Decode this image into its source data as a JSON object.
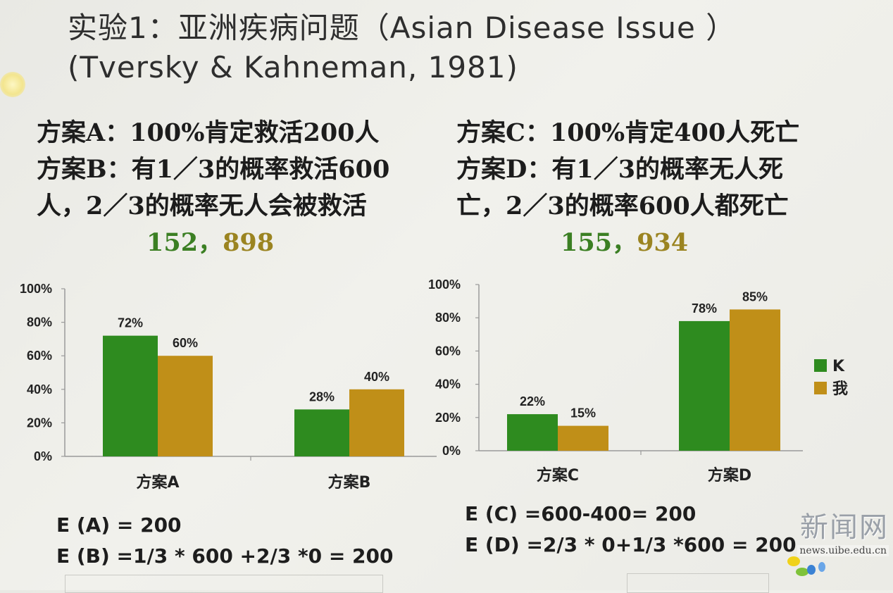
{
  "title": {
    "line1": "实验1：亚洲疾病问题（Asian Disease Issue ）",
    "line2": "(Tversky & Kahneman, 1981)"
  },
  "schemes": {
    "a": "方案A：100%肯定救活200人",
    "b1": "方案B：有1／3的概率救活600",
    "b2": "人，2／3的概率无人会被救活",
    "c": "方案C：100%肯定400人死亡",
    "d1": "方案D：有1／3的概率无人死",
    "d2": "亡，2／3的概率600人都死亡"
  },
  "counts": {
    "left_k": "152",
    "left_sep": "，",
    "left_me": "898",
    "right_k": "155",
    "right_sep": "，",
    "right_me": "934"
  },
  "colors": {
    "k": "#2e8b1f",
    "me": "#c08f18"
  },
  "chart_data": [
    {
      "type": "bar",
      "categories": [
        "方案A",
        "方案B"
      ],
      "series": [
        {
          "name": "K",
          "values": [
            72,
            28
          ],
          "labels": [
            "72%",
            "28%"
          ]
        },
        {
          "name": "我",
          "values": [
            60,
            40
          ],
          "labels": [
            "60%",
            "40%"
          ]
        }
      ],
      "yticks": [
        "0%",
        "20%",
        "40%",
        "60%",
        "80%",
        "100%"
      ],
      "ylim": [
        0,
        100
      ],
      "grid": false
    },
    {
      "type": "bar",
      "categories": [
        "方案C",
        "方案D"
      ],
      "series": [
        {
          "name": "K",
          "values": [
            22,
            78
          ],
          "labels": [
            "22%",
            "78%"
          ]
        },
        {
          "name": "我",
          "values": [
            15,
            85
          ],
          "labels": [
            "15%",
            "85%"
          ]
        }
      ],
      "yticks": [
        "0%",
        "20%",
        "40%",
        "60%",
        "80%",
        "100%"
      ],
      "ylim": [
        0,
        100
      ],
      "grid": false,
      "legend": "right"
    }
  ],
  "legend": {
    "k": "K",
    "me": "我"
  },
  "expectations": {
    "a": "E (A) = 200",
    "b": "E (B) =1/3 * 600 +2/3 *0 = 200",
    "c": "E (C) =600-400= 200",
    "d": "E (D) =2/3 * 0+1/3 *600 = 200"
  },
  "watermark": {
    "name": "新闻网",
    "url": "news.uibe.edu.cn"
  }
}
